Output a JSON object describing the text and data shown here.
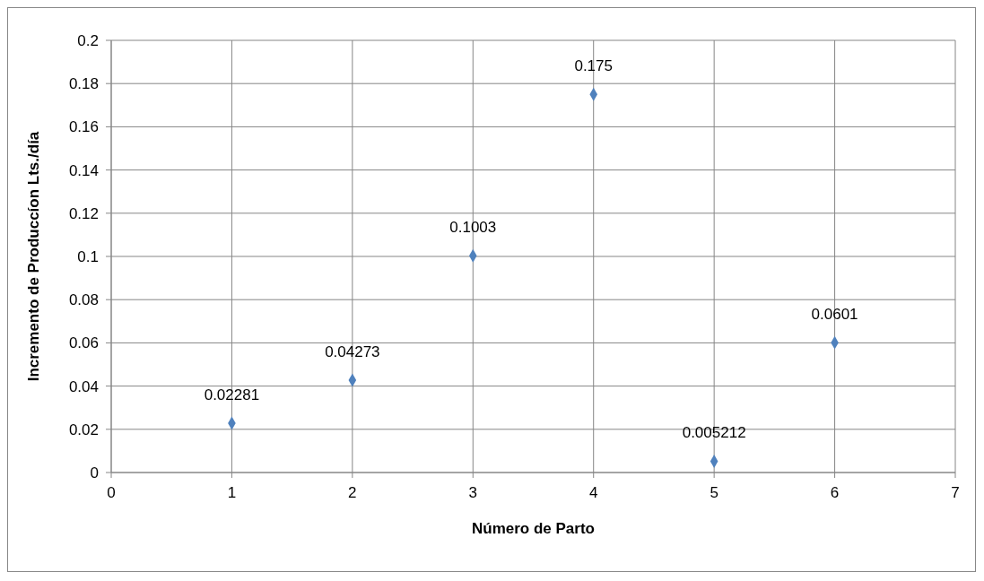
{
  "chart_data": {
    "type": "scatter",
    "xlabel": "Número de Parto",
    "ylabel": "Incremento de Produccíon Lts./día",
    "x": [
      1,
      2,
      3,
      4,
      5,
      6
    ],
    "values": [
      0.02281,
      0.04273,
      0.1003,
      0.175,
      0.005212,
      0.0601
    ],
    "color": "#4f81bd",
    "marker": "diamond",
    "data_labels": true,
    "xlim": [
      0,
      7
    ],
    "xticks": [
      0,
      1,
      2,
      3,
      4,
      5,
      6,
      7
    ],
    "ylim": [
      0,
      0.2
    ],
    "yticks": [
      0,
      0.02,
      0.04,
      0.06,
      0.08,
      0.1,
      0.12,
      0.14,
      0.16,
      0.18,
      0.2
    ],
    "grid": true,
    "legend": false
  }
}
